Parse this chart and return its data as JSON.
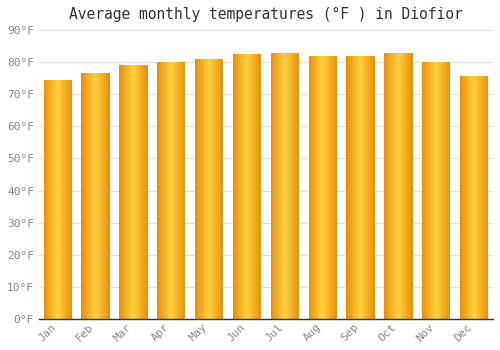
{
  "title": "Average monthly temperatures (°F ) in Diofior",
  "months": [
    "Jan",
    "Feb",
    "Mar",
    "Apr",
    "May",
    "Jun",
    "Jul",
    "Aug",
    "Sep",
    "Oct",
    "Nov",
    "Dec"
  ],
  "values": [
    74.3,
    76.5,
    79.0,
    79.9,
    81.0,
    82.6,
    82.8,
    81.9,
    81.8,
    82.9,
    80.2,
    75.7
  ],
  "bar_color_left": "#E8900A",
  "bar_color_center": "#FFD040",
  "bar_color_right": "#E8900A",
  "ylim": [
    0,
    90
  ],
  "yticks": [
    0,
    10,
    20,
    30,
    40,
    50,
    60,
    70,
    80,
    90
  ],
  "background_color": "#ffffff",
  "plot_bg_color": "#ffffff",
  "grid_color": "#e0e0e0",
  "title_fontsize": 10.5,
  "tick_fontsize": 8,
  "bar_width": 0.75
}
